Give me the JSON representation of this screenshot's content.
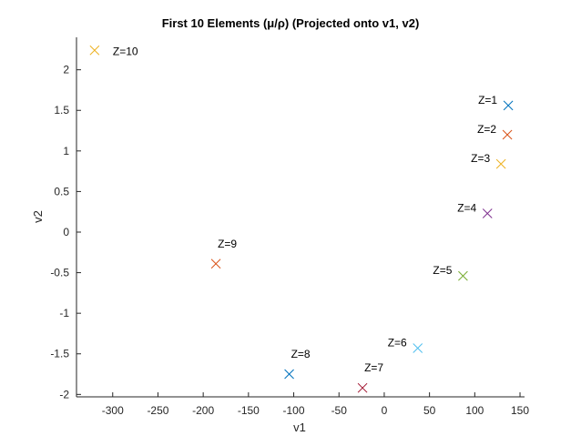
{
  "chart_data": {
    "type": "scatter",
    "title": "First 10 Elements (μ/ρ) (Projected onto v1, v2)",
    "xlabel": "v1",
    "ylabel": "v2",
    "xlim": [
      -340,
      155
    ],
    "ylim": [
      -2.03,
      2.4
    ],
    "xticks": [
      -300,
      -250,
      -200,
      -150,
      -100,
      -50,
      0,
      50,
      100,
      150
    ],
    "yticks": [
      -2,
      -1.5,
      -1,
      -0.5,
      0,
      0.5,
      1,
      1.5,
      2
    ],
    "grid": false,
    "marker": "x",
    "points": [
      {
        "label": "Z=1",
        "x": 137,
        "y": 1.56,
        "color": "#0072BD",
        "label_side": "left"
      },
      {
        "label": "Z=2",
        "x": 136,
        "y": 1.2,
        "color": "#D95319",
        "label_side": "left"
      },
      {
        "label": "Z=3",
        "x": 129,
        "y": 0.84,
        "color": "#EDB120",
        "label_side": "left"
      },
      {
        "label": "Z=4",
        "x": 114,
        "y": 0.23,
        "color": "#7E2F8E",
        "label_side": "left"
      },
      {
        "label": "Z=5",
        "x": 87,
        "y": -0.54,
        "color": "#77AC30",
        "label_side": "left"
      },
      {
        "label": "Z=6",
        "x": 37,
        "y": -1.43,
        "color": "#4DBEEE",
        "label_side": "left"
      },
      {
        "label": "Z=7",
        "x": -24,
        "y": -1.92,
        "color": "#A2142F",
        "label_side": "above"
      },
      {
        "label": "Z=8",
        "x": -105,
        "y": -1.75,
        "color": "#0072BD",
        "label_side": "above"
      },
      {
        "label": "Z=9",
        "x": -186,
        "y": -0.39,
        "color": "#D95319",
        "label_side": "above"
      },
      {
        "label": "Z=10",
        "x": -320,
        "y": 2.24,
        "color": "#EDB120",
        "label_side": "right"
      }
    ]
  }
}
